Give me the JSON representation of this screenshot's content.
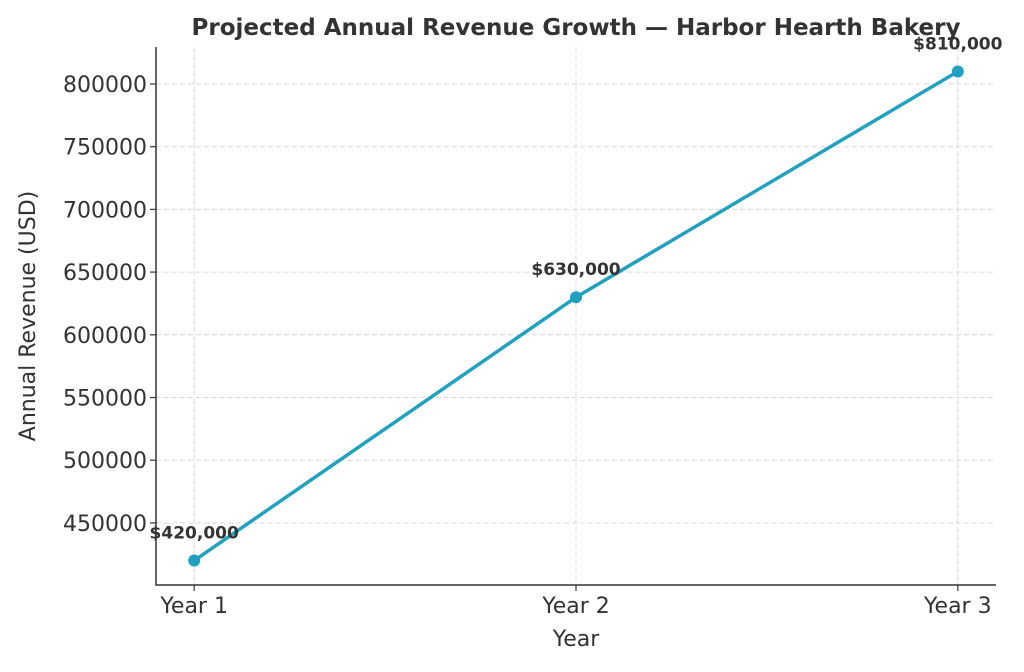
{
  "chart_data": {
    "type": "line",
    "title": "Projected Annual Revenue Growth — Harbor Hearth Bakery",
    "xlabel": "Year",
    "ylabel": "Annual Revenue (USD)",
    "categories": [
      "Year 1",
      "Year 2",
      "Year 3"
    ],
    "values": [
      420000,
      630000,
      810000
    ],
    "data_labels": [
      "$420,000",
      "$630,000",
      "$810,000"
    ],
    "ylim": [
      400500,
      829500
    ],
    "yticks": [
      450000,
      500000,
      550000,
      600000,
      650000,
      700000,
      750000,
      800000
    ],
    "ytick_labels": [
      "450000",
      "500000",
      "550000",
      "600000",
      "650000",
      "700000",
      "750000",
      "800000"
    ],
    "grid": true,
    "markers": true,
    "colors": {
      "line": "#21a0bf",
      "text": "#333333",
      "grid": "#d9d9d9"
    }
  }
}
